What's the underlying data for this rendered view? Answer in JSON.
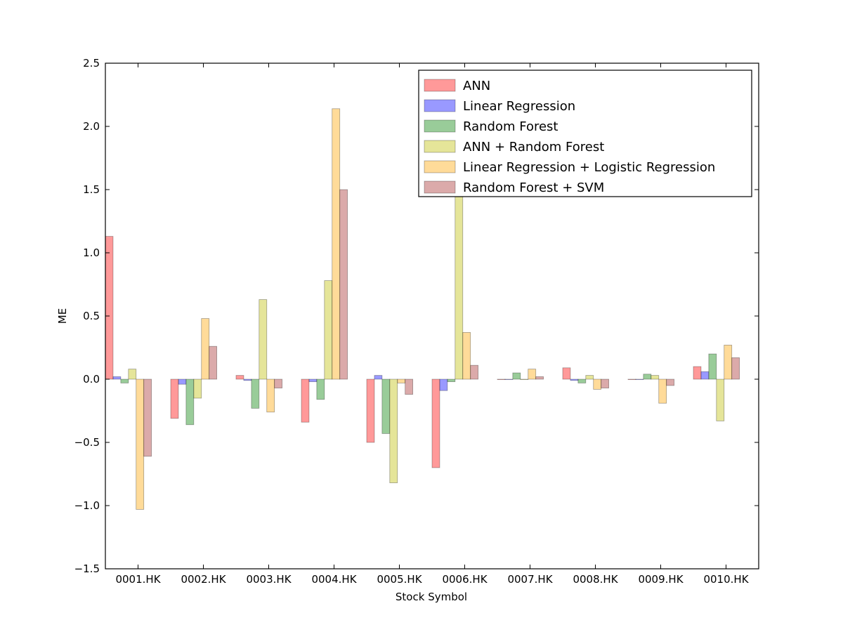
{
  "chart_data": {
    "type": "bar",
    "title": "",
    "xlabel": "Stock Symbol",
    "ylabel": "ME",
    "ylim": [
      -1.5,
      2.5
    ],
    "yticks": [
      -1.5,
      -1.0,
      -0.5,
      0.0,
      0.5,
      1.0,
      1.5,
      2.0,
      2.5
    ],
    "ytick_labels": [
      "−1.5",
      "−1.0",
      "−0.5",
      "0.0",
      "0.5",
      "1.0",
      "1.5",
      "2.0",
      "2.5"
    ],
    "categories": [
      "0001.HK",
      "0002.HK",
      "0003.HK",
      "0004.HK",
      "0005.HK",
      "0006.HK",
      "0007.HK",
      "0008.HK",
      "0009.HK",
      "0010.HK"
    ],
    "grid": false,
    "legend_position": "top-right",
    "series": [
      {
        "name": "ANN",
        "color": "#ff0000",
        "values": [
          1.13,
          -0.31,
          0.03,
          -0.34,
          -0.5,
          -0.7,
          0.0,
          0.09,
          0.0,
          0.1
        ]
      },
      {
        "name": "Linear Regression",
        "color": "#0000ff",
        "values": [
          0.02,
          -0.04,
          -0.01,
          -0.02,
          0.03,
          -0.09,
          0.0,
          -0.01,
          0.0,
          0.06
        ]
      },
      {
        "name": "Random Forest",
        "color": "#008000",
        "values": [
          -0.03,
          -0.36,
          -0.23,
          -0.16,
          -0.43,
          -0.02,
          0.05,
          -0.03,
          0.04,
          0.2
        ]
      },
      {
        "name": "ANN + Random Forest",
        "color": "#bfbf00",
        "values": [
          0.08,
          -0.15,
          0.63,
          0.78,
          -0.82,
          1.5,
          0.0,
          0.03,
          0.03,
          -0.33
        ]
      },
      {
        "name": "Linear Regression + Logistic Regression",
        "color": "#ffa500",
        "values": [
          -1.03,
          0.48,
          -0.26,
          2.14,
          -0.03,
          0.37,
          0.08,
          -0.08,
          -0.19,
          0.27
        ]
      },
      {
        "name": "Random Forest + SVM",
        "color": "#a52a2a",
        "values": [
          -0.61,
          0.26,
          -0.07,
          1.5,
          -0.12,
          0.11,
          0.02,
          -0.07,
          -0.05,
          0.17
        ]
      }
    ]
  }
}
